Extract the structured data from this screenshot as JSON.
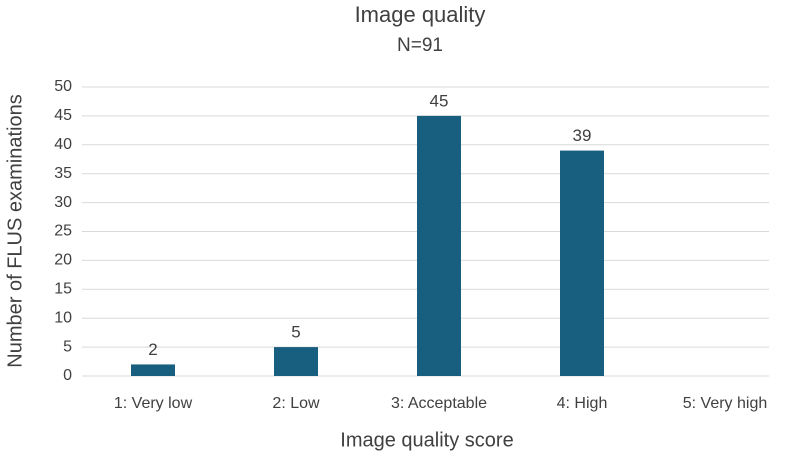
{
  "chart_data": {
    "type": "bar",
    "title": "Image quality",
    "subtitle": "N=91",
    "x_label": "Image quality score",
    "y_label": "Number of FLUS examinations",
    "categories": [
      "1: Very low",
      "2: Low",
      "3: Acceptable",
      "4: High",
      "5: Very high"
    ],
    "values": [
      2,
      5,
      45,
      39,
      null
    ],
    "color": "#175e7f",
    "ylim": [
      0,
      50
    ],
    "yticks": [
      0,
      5,
      10,
      15,
      20,
      25,
      30,
      35,
      40,
      45,
      50
    ],
    "grid": true
  }
}
